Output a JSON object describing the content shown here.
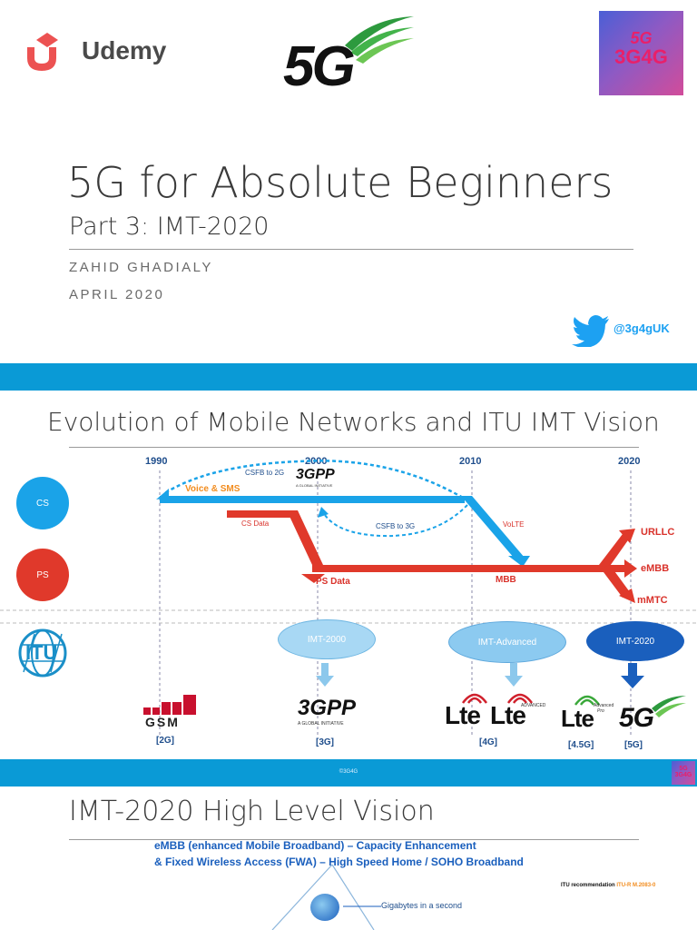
{
  "slide1": {
    "brand": "Udemy",
    "logo_5g": "5G",
    "logo_badge_top": "5G",
    "logo_badge_bottom": "3G4G",
    "title": "5G for Absolute Beginners",
    "subtitle": "Part 3: IMT-2020",
    "author": "ZAHID GHADIALY",
    "date": "APRIL 2020",
    "twitter_handle": "@3g4gUK"
  },
  "slide2": {
    "title": "Evolution of Mobile Networks and ITU IMT Vision",
    "years": [
      "1990",
      "2000",
      "2010",
      "2020"
    ],
    "cs_label": "CS",
    "ps_label": "PS",
    "voice_sms": "Voice & SMS",
    "csfb_2g": "CSFB to 2G",
    "csfb_3g": "CSFB to 3G",
    "cs_data": "CS Data",
    "volte": "VoLTE",
    "ps_data": "PS Data",
    "mbb": "MBB",
    "urllc": "URLLC",
    "embb": "eMBB",
    "mmtc": "mMTC",
    "logo_3gpp": "3GPP",
    "logo_3gpp_sub": "A GLOBAL INITIATIVE",
    "itu": "ITU",
    "imt2000": "IMT-2000",
    "imt_adv": "IMT-Advanced",
    "imt2020": "IMT-2020",
    "gsm": "GSM",
    "lte": "Lte",
    "lte_adv_sup": "ADVANCED",
    "lte_pro_sup1": "Advanced",
    "lte_pro_sup2": "Pro",
    "logo_5g": "5G",
    "gen_2g": "[2G]",
    "gen_3g": "[3G]",
    "gen_4g": "[4G]",
    "gen_45g": "[4.5G]",
    "gen_5g": "[5G]",
    "footer": "©3G4G",
    "badge_top": "5G",
    "badge_bottom": "3G4G"
  },
  "slide3": {
    "title": "IMT-2020 High Level Vision",
    "line1": "eMBB (enhanced Mobile Broadband) – Capacity Enhancement",
    "line2": "& Fixed Wireless Access (FWA) – High Speed Home / SOHO Broadband",
    "itu_prefix": "ITU recommendation",
    "itu_ref": "ITU-R M.2083-0",
    "gigabytes": "Gigabytes in a second"
  },
  "colors": {
    "band": "#0a9ad6",
    "cs": "#1aa3e8",
    "ps": "#e0392b",
    "navy": "#1f4e8c",
    "udemy": "#ec5252"
  }
}
